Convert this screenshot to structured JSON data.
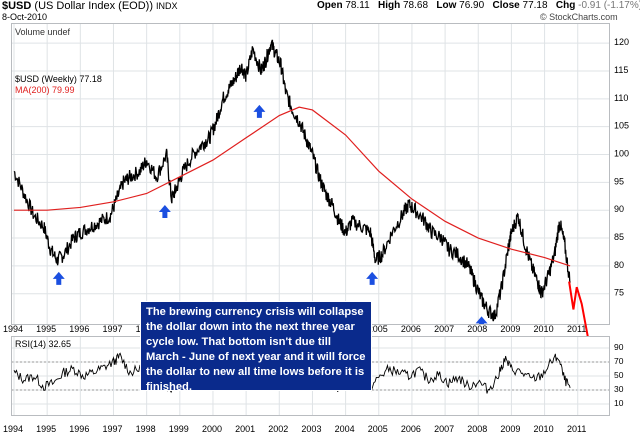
{
  "header": {
    "symbol": "$USD",
    "name": "(US Dollar Index (EOD))",
    "exchange": "INDX",
    "date": "8-Oct-2010",
    "open_label": "Open",
    "open": "78.11",
    "high_label": "High",
    "high": "78.68",
    "low_label": "Low",
    "low": "76.90",
    "close_label": "Close",
    "close": "77.18",
    "chg_label": "Chg",
    "chg": "-0.91 (-1.17%)",
    "watermark": "© StockCharts.com",
    "volume_legend": "Volume undef"
  },
  "price_legend": {
    "main": "$USD (Weekly) 77.18",
    "ma": "MA(200) 79.99"
  },
  "rsi_legend": "RSI(14) 32.65",
  "annotation": "The brewing currency crisis will collapse the dollar down into the next three year cycle low. That bottom isn't due till March - June of next year and it will force the dollar to new all time lows before it is finished.",
  "colors": {
    "price": "#000000",
    "ma": "#e0201f",
    "forecast": "#ff0000",
    "arrows": "#1b4fe0",
    "rsi": "#000000",
    "note_bg": "#0a2a8c",
    "grid": "#dfe3e6"
  },
  "chart_data": [
    {
      "type": "line",
      "title": "$USD (Weekly) 77.18",
      "x_tick_labels": [
        "1994",
        "1995",
        "1996",
        "1997",
        "1998",
        "1999",
        "2000",
        "2001",
        "2002",
        "2003",
        "2004",
        "2005",
        "2006",
        "2007",
        "2008",
        "2009",
        "2010",
        "2011"
      ],
      "y_tick_labels": [
        "75",
        "80",
        "85",
        "90",
        "95",
        "100",
        "105",
        "110",
        "115",
        "120"
      ],
      "ylim": [
        71,
        122
      ],
      "xlim": [
        1994.0,
        2011.4
      ],
      "grid": true,
      "series": [
        {
          "name": "$USD (Weekly)",
          "x": [
            1994.0,
            1994.3,
            1994.6,
            1994.9,
            1995.1,
            1995.3,
            1995.5,
            1995.8,
            1996.0,
            1996.3,
            1996.6,
            1996.9,
            1997.1,
            1997.3,
            1997.5,
            1997.8,
            1998.0,
            1998.3,
            1998.6,
            1998.75,
            1998.9,
            1999.1,
            1999.4,
            1999.7,
            1999.9,
            2000.1,
            2000.3,
            2000.5,
            2000.7,
            2000.85,
            2001.0,
            2001.2,
            2001.45,
            2001.6,
            2001.75,
            2001.9,
            2002.05,
            2002.2,
            2002.4,
            2002.6,
            2002.8,
            2003.0,
            2003.2,
            2003.4,
            2003.6,
            2003.8,
            2004.0,
            2004.2,
            2004.5,
            2004.75,
            2004.9,
            2005.1,
            2005.4,
            2005.7,
            2005.9,
            2006.1,
            2006.4,
            2006.6,
            2006.9,
            2007.1,
            2007.4,
            2007.7,
            2007.9,
            2008.1,
            2008.3,
            2008.5,
            2008.7,
            2008.9,
            2009.0,
            2009.2,
            2009.4,
            2009.6,
            2009.8,
            2009.9,
            2010.1,
            2010.3,
            2010.45,
            2010.6,
            2010.77
          ],
          "values": [
            97,
            93,
            89,
            87,
            83,
            81,
            82,
            85,
            86,
            87,
            88,
            89,
            92,
            95,
            96,
            97,
            99,
            96,
            100,
            92,
            94,
            97,
            100,
            102,
            103,
            106,
            110,
            112,
            114,
            116,
            114,
            119,
            115,
            117,
            120,
            118,
            116,
            111,
            108,
            106,
            103,
            100,
            96,
            93,
            91,
            88,
            86,
            88,
            87,
            86,
            81,
            82,
            86,
            89,
            91,
            90,
            88,
            86,
            85,
            83,
            82,
            80,
            77,
            74,
            72,
            71,
            76,
            83,
            86,
            89,
            84,
            80,
            77,
            75,
            78,
            82,
            88,
            84,
            77
          ],
          "unit": "index"
        },
        {
          "name": "MA(200)",
          "x": [
            1994.0,
            1995.0,
            1996.0,
            1997.0,
            1998.0,
            1999.0,
            2000.0,
            2001.0,
            2002.0,
            2002.6,
            2003.0,
            2004.0,
            2005.0,
            2006.0,
            2007.0,
            2008.0,
            2009.0,
            2010.0,
            2010.77
          ],
          "values": [
            90,
            90,
            90.5,
            91.5,
            93,
            96,
            99,
            103,
            107,
            108.5,
            108,
            103.5,
            97,
            92,
            88,
            85,
            83,
            81.5,
            79.99
          ]
        },
        {
          "name": "forecast",
          "x": [
            2010.77,
            2010.9,
            2011.0,
            2011.15,
            2011.4
          ],
          "values": [
            77,
            72,
            76,
            73,
            65
          ]
        }
      ],
      "arrows_at": [
        {
          "x": 1995.35,
          "y": 80
        },
        {
          "x": 1998.55,
          "y": 92
        },
        {
          "x": 2001.4,
          "y": 110
        },
        {
          "x": 2004.8,
          "y": 80
        },
        {
          "x": 2008.1,
          "y": 72
        }
      ]
    },
    {
      "type": "line",
      "title": "RSI(14) 32.65",
      "x_tick_labels": [
        "1994",
        "1995",
        "1996",
        "1997",
        "1998",
        "1999",
        "2000",
        "2001",
        "2002",
        "2003",
        "2004",
        "2005",
        "2006",
        "2007",
        "2008",
        "2009",
        "2010",
        "2011"
      ],
      "y_tick_labels": [
        "10",
        "30",
        "50",
        "70",
        "90"
      ],
      "ylim": [
        0,
        100
      ],
      "reference_lines": [
        30,
        70
      ],
      "series": [
        {
          "name": "RSI(14)",
          "x": [
            1994.0,
            1994.3,
            1994.6,
            1994.9,
            1995.2,
            1995.5,
            1995.8,
            1996.1,
            1996.4,
            1996.7,
            1997.0,
            1997.2,
            1997.5,
            1997.8,
            1998.1,
            1998.4,
            1998.7,
            1999.0,
            1999.3,
            1999.6,
            1999.9,
            2000.2,
            2000.5,
            2000.8,
            2001.1,
            2001.4,
            2001.7,
            2002.0,
            2002.3,
            2002.6,
            2002.9,
            2003.2,
            2003.5,
            2003.8,
            2004.1,
            2004.4,
            2004.7,
            2005.0,
            2005.3,
            2005.6,
            2005.9,
            2006.2,
            2006.5,
            2006.8,
            2007.1,
            2007.4,
            2007.7,
            2008.0,
            2008.3,
            2008.6,
            2008.8,
            2009.0,
            2009.3,
            2009.6,
            2009.9,
            2010.2,
            2010.4,
            2010.6,
            2010.77
          ],
          "values": [
            55,
            45,
            50,
            35,
            40,
            55,
            60,
            50,
            55,
            62,
            70,
            78,
            55,
            60,
            45,
            50,
            30,
            55,
            60,
            50,
            65,
            70,
            48,
            62,
            55,
            65,
            50,
            60,
            40,
            35,
            45,
            38,
            50,
            32,
            45,
            55,
            30,
            48,
            60,
            55,
            50,
            58,
            45,
            52,
            40,
            48,
            35,
            42,
            30,
            50,
            75,
            60,
            55,
            45,
            50,
            70,
            78,
            45,
            33
          ]
        }
      ]
    }
  ]
}
